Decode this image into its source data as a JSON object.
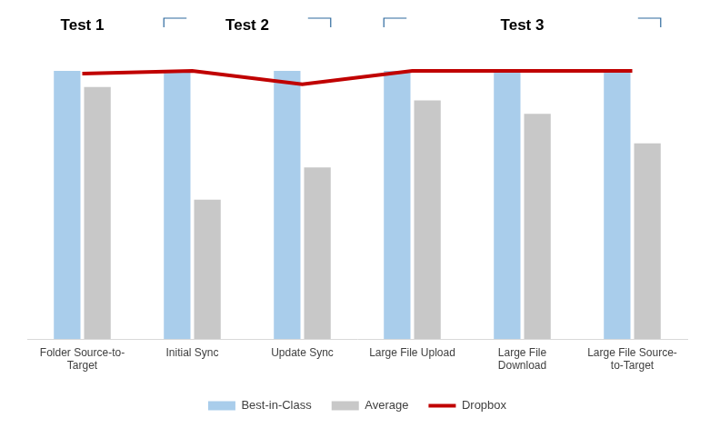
{
  "chart_data": {
    "type": "bar",
    "categories": [
      "Folder Source-to-Target",
      "Initial Sync",
      "Update Sync",
      "Large File Upload",
      "Large File Download",
      "Large File Source-to-Target"
    ],
    "series": [
      {
        "name": "Best-in-Class",
        "color": "#a9cdeb",
        "values": [
          100,
          100,
          100,
          100,
          100,
          100
        ]
      },
      {
        "name": "Average",
        "color": "#c8c8c8",
        "values": [
          94,
          52,
          64,
          89,
          84,
          73
        ]
      },
      {
        "name": "Dropbox",
        "type": "line",
        "color": "#c00000",
        "values": [
          99,
          100,
          95,
          100,
          100,
          100
        ]
      }
    ],
    "ylim": [
      0,
      100
    ],
    "grid": false,
    "legend": "bottom",
    "tick_labels": "x",
    "annotations": [
      {
        "text": "Test 1",
        "categories": [
          "Folder Source-to-Target"
        ]
      },
      {
        "text": "Test 2",
        "categories": [
          "Initial Sync",
          "Update Sync"
        ]
      },
      {
        "text": "Test 3",
        "categories": [
          "Large File Upload",
          "Large File Download",
          "Large File Source-to-Target"
        ]
      }
    ]
  }
}
